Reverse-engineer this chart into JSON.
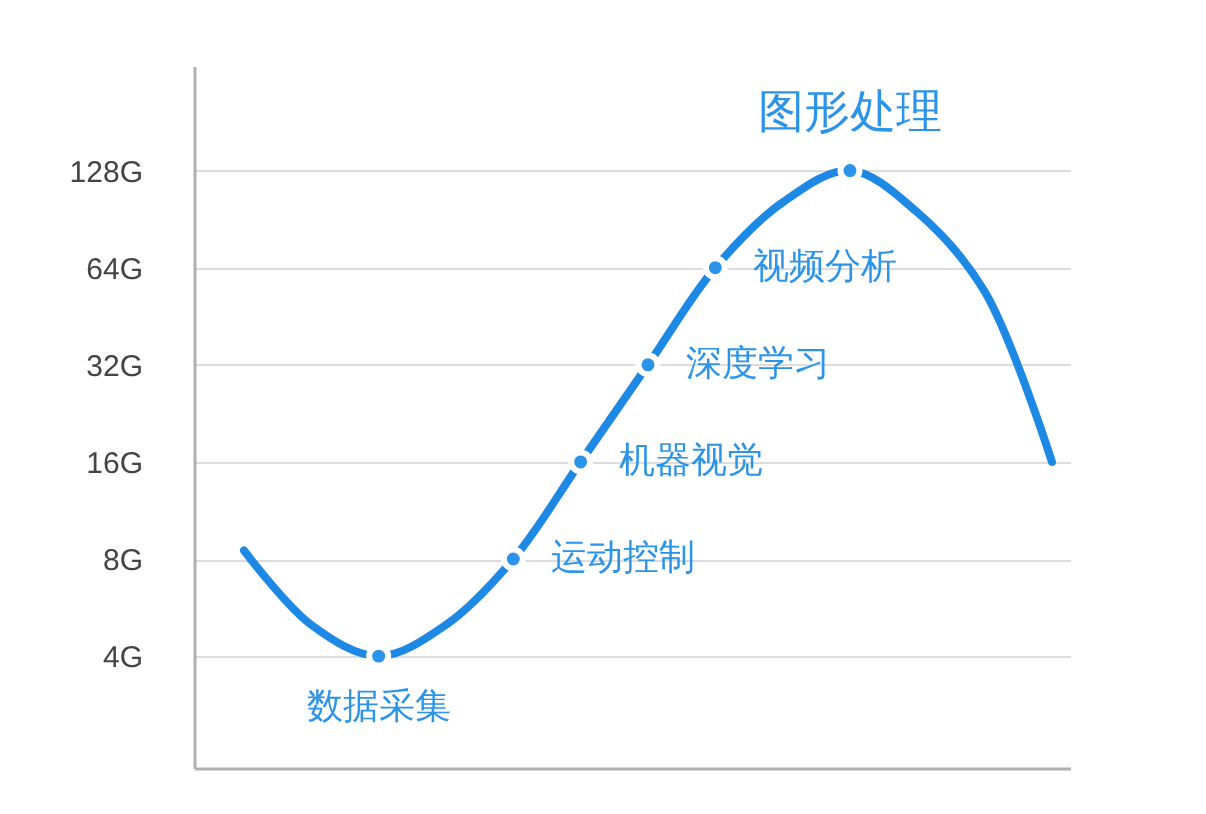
{
  "chart_data": {
    "type": "line",
    "categories": [
      null,
      null,
      null,
      null,
      null,
      null,
      null,
      null,
      null,
      null,
      null,
      null,
      null
    ],
    "series": [
      {
        "color": "#1e88e5",
        "values": [
          8.5,
          5,
          4,
          5,
          8,
          16,
          32,
          64,
          102,
          128,
          95,
          54,
          16
        ]
      },
      {
        "type": "scatter",
        "color": "#2b94e8",
        "marker": "circle",
        "values": [
          null,
          null,
          4,
          null,
          8,
          16,
          32,
          64,
          null,
          128,
          null,
          null,
          null
        ],
        "value_labels": [
          null,
          null,
          "数据采集",
          null,
          "运动控制",
          "机器视觉",
          "深度学习",
          "视频分析",
          null,
          "图形处理",
          null,
          null,
          null
        ]
      }
    ],
    "log": "y",
    "ylim": [
      1.8,
      270
    ],
    "yticks": [
      {
        "value": 4,
        "label": "4G"
      },
      {
        "value": 8,
        "label": "8G"
      },
      {
        "value": 16,
        "label": "16G"
      },
      {
        "value": 32,
        "label": "32G"
      },
      {
        "value": 64,
        "label": "64G"
      },
      {
        "value": 128,
        "label": "128G"
      }
    ],
    "grid": "y",
    "tick_labels": "y"
  }
}
